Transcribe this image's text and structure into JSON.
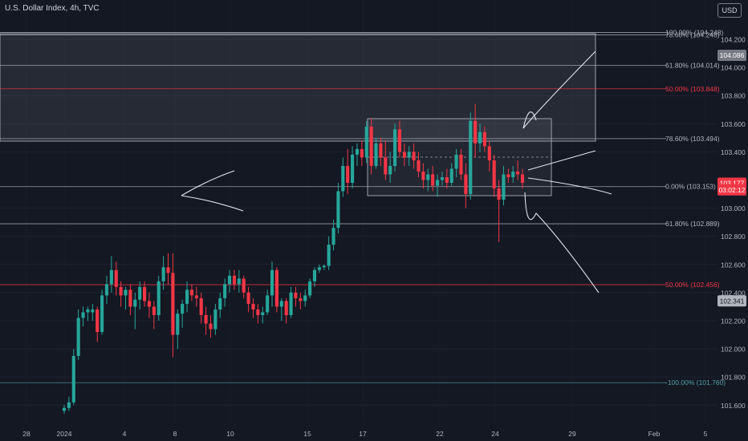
{
  "header": {
    "title": "U.S. Dollar Index, 4h, TVC",
    "currency_button": "USD"
  },
  "colors": {
    "background": "#141823",
    "up": "#26a69a",
    "down": "#f23645",
    "level_line": "#b2b5be",
    "red_level": "#f23645",
    "teal_level": "#4fa0a4"
  },
  "chart_data": {
    "type": "candlestick",
    "symbol": "U.S. Dollar Index",
    "interval": "4h",
    "ylim": [
      101.52,
      104.3
    ],
    "x_ticks": [
      "28",
      "2024",
      "4",
      "8",
      "10",
      "15",
      "17",
      "22",
      "24",
      "29",
      "Feb",
      "5"
    ],
    "y_ticks": [
      "104.200",
      "104.000",
      "103.800",
      "103.600",
      "103.400",
      "103.000",
      "102.800",
      "102.600",
      "102.400",
      "102.200",
      "102.000",
      "101.800",
      "101.600"
    ],
    "price_labels": [
      {
        "text": "104.086",
        "value": 104.086,
        "style": "gray"
      },
      {
        "text": "103.177",
        "value": 103.177,
        "style": "red"
      },
      {
        "text": "03:02:12",
        "value": 103.13,
        "style": "red"
      },
      {
        "text": "102.341",
        "value": 102.341,
        "style": "light"
      }
    ],
    "fib_levels": [
      {
        "label": "100.00% (104.248)",
        "value": 104.248,
        "style": "white"
      },
      {
        "label": "78.60% (104.248)",
        "value": 104.248,
        "style": "white"
      },
      {
        "label": "61.80% (104.014)",
        "value": 104.014,
        "style": "white"
      },
      {
        "label": "50.00% (103.848)",
        "value": 103.848,
        "style": "red"
      },
      {
        "label": "78.60% (103.494)",
        "value": 103.494,
        "style": "white"
      },
      {
        "label": "0.00% (103.153)",
        "value": 103.153,
        "style": "white"
      },
      {
        "label": "61.80% (102.889)",
        "value": 102.889,
        "style": "white"
      },
      {
        "label": "50.00% (102.456)",
        "value": 102.456,
        "style": "red"
      },
      {
        "label": "-100.00% (101.760)",
        "value": 101.76,
        "style": "teal"
      }
    ],
    "candles": [
      [
        101.56,
        101.6,
        101.54,
        101.58
      ],
      [
        101.58,
        101.66,
        101.56,
        101.62
      ],
      [
        101.62,
        102.0,
        101.6,
        101.95
      ],
      [
        101.95,
        102.28,
        101.92,
        102.22
      ],
      [
        102.22,
        102.3,
        102.16,
        102.26
      ],
      [
        102.26,
        102.3,
        102.2,
        102.28
      ],
      [
        102.26,
        102.32,
        102.2,
        102.28
      ],
      [
        102.28,
        102.3,
        102.05,
        102.12
      ],
      [
        102.12,
        102.42,
        102.1,
        102.38
      ],
      [
        102.38,
        102.52,
        102.32,
        102.46
      ],
      [
        102.46,
        102.66,
        102.4,
        102.56
      ],
      [
        102.56,
        102.62,
        102.38,
        102.44
      ],
      [
        102.44,
        102.48,
        102.3,
        102.38
      ],
      [
        102.38,
        102.44,
        102.28,
        102.42
      ],
      [
        102.42,
        102.46,
        102.24,
        102.3
      ],
      [
        102.3,
        102.4,
        102.14,
        102.35
      ],
      [
        102.35,
        102.48,
        102.28,
        102.44
      ],
      [
        102.44,
        102.48,
        102.3,
        102.34
      ],
      [
        102.34,
        102.4,
        102.22,
        102.3
      ],
      [
        102.3,
        102.34,
        102.14,
        102.24
      ],
      [
        102.24,
        102.52,
        102.2,
        102.48
      ],
      [
        102.48,
        102.66,
        102.42,
        102.58
      ],
      [
        102.58,
        102.68,
        102.46,
        102.54
      ],
      [
        102.54,
        102.68,
        101.94,
        102.1
      ],
      [
        102.1,
        102.28,
        102.0,
        102.25
      ],
      [
        102.25,
        102.35,
        102.15,
        102.32
      ],
      [
        102.32,
        102.48,
        102.26,
        102.42
      ],
      [
        102.42,
        102.46,
        102.34,
        102.38
      ],
      [
        102.38,
        102.44,
        102.3,
        102.36
      ],
      [
        102.36,
        102.4,
        102.18,
        102.24
      ],
      [
        102.24,
        102.3,
        102.1,
        102.18
      ],
      [
        102.18,
        102.24,
        102.08,
        102.14
      ],
      [
        102.14,
        102.32,
        102.1,
        102.28
      ],
      [
        102.28,
        102.4,
        102.22,
        102.36
      ],
      [
        102.36,
        102.5,
        102.3,
        102.46
      ],
      [
        102.46,
        102.56,
        102.4,
        102.52
      ],
      [
        102.52,
        102.56,
        102.42,
        102.46
      ],
      [
        102.46,
        102.56,
        102.4,
        102.5
      ],
      [
        102.5,
        102.52,
        102.36,
        102.4
      ],
      [
        102.4,
        102.44,
        102.26,
        102.32
      ],
      [
        102.32,
        102.36,
        102.22,
        102.28
      ],
      [
        102.28,
        102.32,
        102.18,
        102.24
      ],
      [
        102.24,
        102.3,
        102.18,
        102.26
      ],
      [
        102.26,
        102.42,
        102.24,
        102.38
      ],
      [
        102.38,
        102.62,
        102.3,
        102.56
      ],
      [
        102.56,
        102.58,
        102.26,
        102.3
      ],
      [
        102.3,
        102.36,
        102.2,
        102.34
      ],
      [
        102.34,
        102.36,
        102.18,
        102.24
      ],
      [
        102.24,
        102.44,
        102.22,
        102.4
      ],
      [
        102.4,
        102.44,
        102.3,
        102.36
      ],
      [
        102.36,
        102.4,
        102.28,
        102.34
      ],
      [
        102.34,
        102.42,
        102.3,
        102.38
      ],
      [
        102.38,
        102.5,
        102.36,
        102.48
      ],
      [
        102.48,
        102.58,
        102.44,
        102.56
      ],
      [
        102.56,
        102.6,
        102.54,
        102.58
      ],
      [
        102.58,
        102.6,
        102.56,
        102.59
      ],
      [
        102.59,
        102.8,
        102.56,
        102.74
      ],
      [
        102.74,
        102.92,
        102.7,
        102.86
      ],
      [
        102.86,
        103.18,
        102.82,
        103.12
      ],
      [
        103.12,
        103.36,
        103.08,
        103.3
      ],
      [
        103.3,
        103.42,
        103.1,
        103.18
      ],
      [
        103.18,
        103.44,
        103.14,
        103.38
      ],
      [
        103.38,
        103.46,
        103.3,
        103.42
      ],
      [
        103.42,
        103.48,
        103.3,
        103.36
      ],
      [
        103.36,
        103.62,
        103.32,
        103.58
      ],
      [
        103.58,
        103.64,
        103.24,
        103.3
      ],
      [
        103.3,
        103.5,
        103.28,
        103.46
      ],
      [
        103.46,
        103.5,
        103.3,
        103.36
      ],
      [
        103.36,
        103.48,
        103.2,
        103.24
      ],
      [
        103.24,
        103.4,
        103.18,
        103.3
      ],
      [
        103.3,
        103.6,
        103.26,
        103.56
      ],
      [
        103.56,
        103.62,
        103.36,
        103.4
      ],
      [
        103.4,
        103.46,
        103.3,
        103.36
      ],
      [
        103.36,
        103.44,
        103.3,
        103.4
      ],
      [
        103.4,
        103.46,
        103.28,
        103.34
      ],
      [
        103.34,
        103.4,
        103.22,
        103.26
      ],
      [
        103.26,
        103.32,
        103.14,
        103.2
      ],
      [
        103.2,
        103.28,
        103.12,
        103.24
      ],
      [
        103.24,
        103.3,
        103.12,
        103.16
      ],
      [
        103.16,
        103.24,
        103.08,
        103.2
      ],
      [
        103.2,
        103.26,
        103.16,
        103.22
      ],
      [
        103.22,
        103.28,
        103.14,
        103.18
      ],
      [
        103.18,
        103.32,
        103.16,
        103.28
      ],
      [
        103.28,
        103.42,
        103.22,
        103.38
      ],
      [
        103.38,
        103.42,
        103.2,
        103.24
      ],
      [
        103.24,
        103.32,
        103.0,
        103.1
      ],
      [
        103.1,
        103.68,
        103.06,
        103.62
      ],
      [
        103.62,
        103.74,
        103.36,
        103.46
      ],
      [
        103.46,
        103.6,
        103.4,
        103.54
      ],
      [
        103.54,
        103.58,
        103.4,
        103.44
      ],
      [
        103.44,
        103.48,
        103.26,
        103.34
      ],
      [
        103.34,
        103.38,
        103.08,
        103.14
      ],
      [
        103.14,
        103.2,
        102.76,
        103.06
      ],
      [
        103.06,
        103.3,
        103.02,
        103.24
      ],
      [
        103.24,
        103.28,
        103.18,
        103.22
      ],
      [
        103.22,
        103.3,
        103.18,
        103.26
      ],
      [
        103.26,
        103.34,
        103.2,
        103.24
      ],
      [
        103.24,
        103.28,
        103.14,
        103.18
      ]
    ]
  }
}
